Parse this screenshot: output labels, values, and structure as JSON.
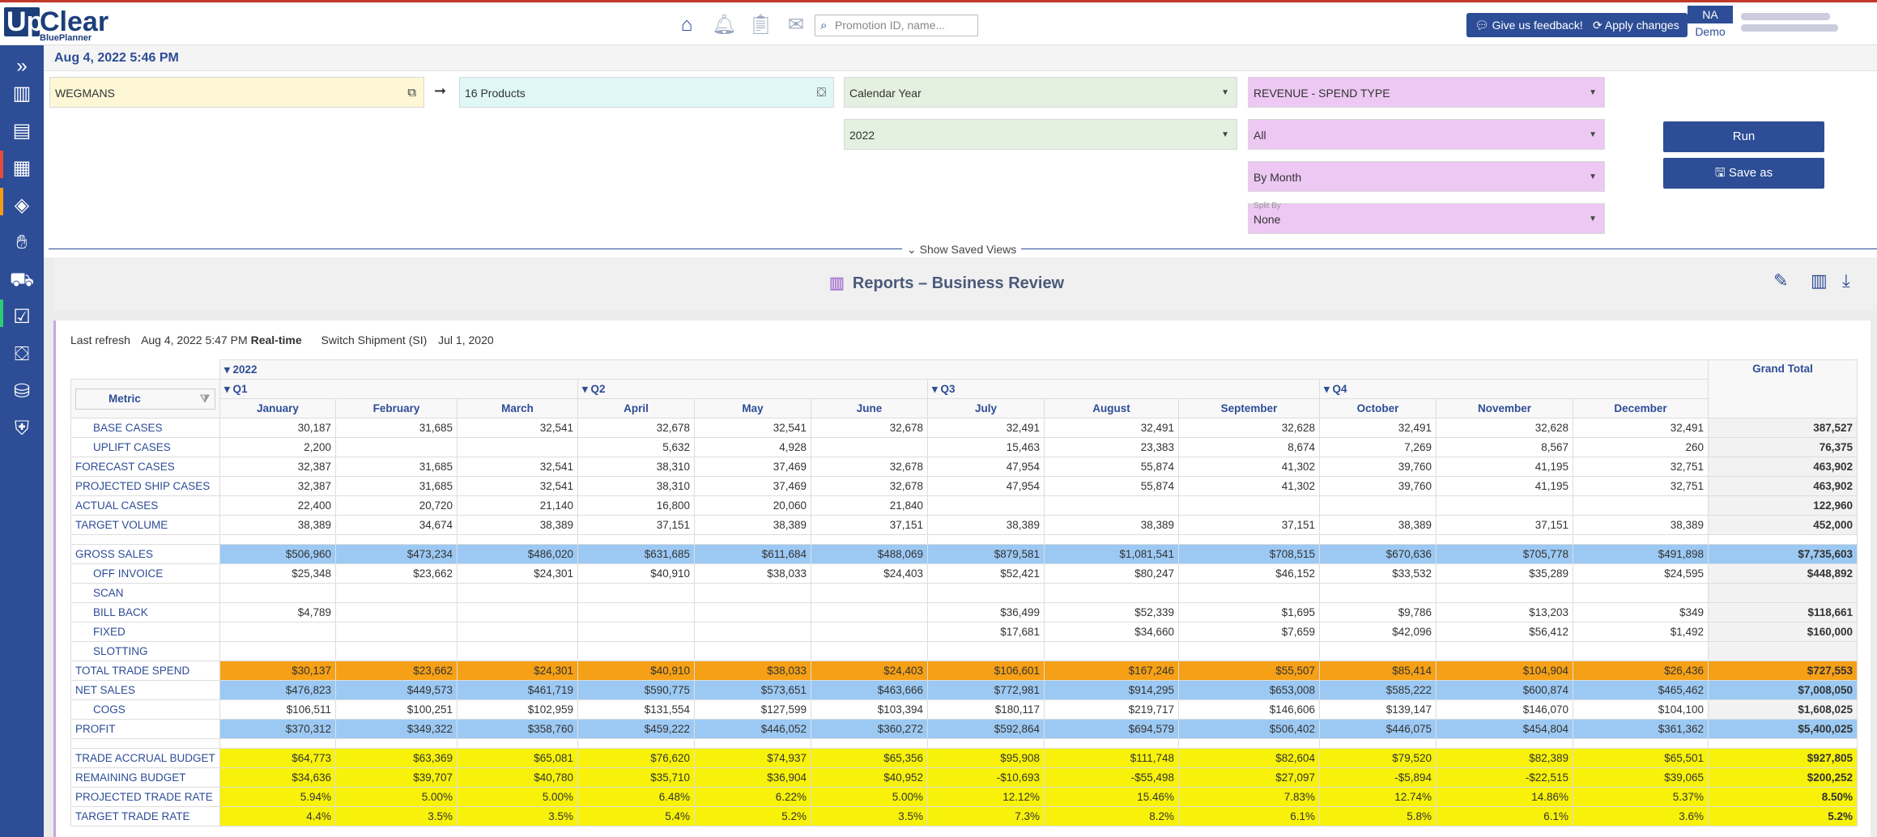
{
  "header": {
    "logo_up": "Up",
    "logo_clear": "Clear",
    "logo_sub": "BluePlanner",
    "search_placeholder": "Promotion ID, name...",
    "feedback_label": "Give us feedback!",
    "apply_label": "Apply changes",
    "user_initials": "NA",
    "user_role": "Demo",
    "icons": [
      "home-icon",
      "bell-icon",
      "clipboard-check-icon",
      "mail-icon",
      "search-icon"
    ]
  },
  "sidebar": {
    "icons": [
      "expand-icon",
      "reports-icon",
      "warehouse-icon",
      "table-icon",
      "tag-icon",
      "handshake-icon",
      "cart-icon",
      "checkbox-icon",
      "toolbox-icon",
      "database-icon",
      "shield-icon"
    ],
    "marker_colors": [
      "#2d4d96",
      "#e74c3c",
      "#f39c12",
      "#2ecc71",
      "#3498db",
      "#9b59b6"
    ]
  },
  "datebar": {
    "text": "Aug 4, 2022 5:46 PM"
  },
  "filters": {
    "customer": "WEGMANS",
    "products": "16 Products",
    "period": "Calendar Year",
    "year": "2022",
    "measure": "REVENUE - SPEND TYPE",
    "scope": "All",
    "granularity": "By Month",
    "split_label": "Split By",
    "split_value": "None"
  },
  "actions": {
    "run": "Run",
    "save_as": "Save as"
  },
  "saved_views": {
    "label": "Show Saved Views"
  },
  "report": {
    "title": "Reports – Business Review",
    "last_refresh_label": "Last refresh",
    "last_refresh_value": "Aug 4, 2022 5:47 PM",
    "realtime": "Real-time",
    "shipment_label": "Switch Shipment (SI)",
    "shipment_date": "Jul 1, 2020"
  },
  "table": {
    "year": "2022",
    "quarters": [
      "Q1",
      "Q2",
      "Q3",
      "Q4"
    ],
    "metric_header": "Metric",
    "grand_total_header": "Grand Total",
    "months": [
      "January",
      "February",
      "March",
      "April",
      "May",
      "June",
      "July",
      "August",
      "September",
      "October",
      "November",
      "December"
    ],
    "rows": [
      {
        "label": "BASE CASES",
        "indent": true,
        "style": "",
        "values": [
          "30,187",
          "31,685",
          "32,541",
          "32,678",
          "32,541",
          "32,678",
          "32,491",
          "32,491",
          "32,628",
          "32,491",
          "32,628",
          "32,491"
        ],
        "total": "387,527"
      },
      {
        "label": "UPLIFT CASES",
        "indent": true,
        "style": "",
        "values": [
          "2,200",
          "",
          "",
          "5,632",
          "4,928",
          "",
          "15,463",
          "23,383",
          "8,674",
          "7,269",
          "8,567",
          "260"
        ],
        "total": "76,375"
      },
      {
        "label": "FORECAST CASES",
        "indent": false,
        "style": "",
        "values": [
          "32,387",
          "31,685",
          "32,541",
          "38,310",
          "37,469",
          "32,678",
          "47,954",
          "55,874",
          "41,302",
          "39,760",
          "41,195",
          "32,751"
        ],
        "total": "463,902"
      },
      {
        "label": "PROJECTED SHIP CASES",
        "indent": false,
        "style": "",
        "values": [
          "32,387",
          "31,685",
          "32,541",
          "38,310",
          "37,469",
          "32,678",
          "47,954",
          "55,874",
          "41,302",
          "39,760",
          "41,195",
          "32,751"
        ],
        "total": "463,902"
      },
      {
        "label": "ACTUAL CASES",
        "indent": false,
        "style": "",
        "values": [
          "22,400",
          "20,720",
          "21,140",
          "16,800",
          "20,060",
          "21,840",
          "",
          "",
          "",
          "",
          "",
          ""
        ],
        "total": "122,960"
      },
      {
        "label": "TARGET VOLUME",
        "indent": false,
        "style": "",
        "values": [
          "38,389",
          "34,674",
          "38,389",
          "37,151",
          "38,389",
          "37,151",
          "38,389",
          "38,389",
          "37,151",
          "38,389",
          "37,151",
          "38,389"
        ],
        "total": "452,000"
      },
      {
        "spacer": true
      },
      {
        "label": "GROSS SALES",
        "indent": false,
        "style": "blue",
        "values": [
          "$506,960",
          "$473,234",
          "$486,020",
          "$631,685",
          "$611,684",
          "$488,069",
          "$879,581",
          "$1,081,541",
          "$708,515",
          "$670,636",
          "$705,778",
          "$491,898"
        ],
        "total": "$7,735,603"
      },
      {
        "label": "OFF INVOICE",
        "indent": true,
        "style": "",
        "values": [
          "$25,348",
          "$23,662",
          "$24,301",
          "$40,910",
          "$38,033",
          "$24,403",
          "$52,421",
          "$80,247",
          "$46,152",
          "$33,532",
          "$35,289",
          "$24,595"
        ],
        "total": "$448,892"
      },
      {
        "label": "SCAN",
        "indent": true,
        "style": "",
        "values": [
          "",
          "",
          "",
          "",
          "",
          "",
          "",
          "",
          "",
          "",
          "",
          ""
        ],
        "total": ""
      },
      {
        "label": "BILL BACK",
        "indent": true,
        "style": "",
        "values": [
          "$4,789",
          "",
          "",
          "",
          "",
          "",
          "$36,499",
          "$52,339",
          "$1,695",
          "$9,786",
          "$13,203",
          "$349"
        ],
        "total": "$118,661"
      },
      {
        "label": "FIXED",
        "indent": true,
        "style": "",
        "values": [
          "",
          "",
          "",
          "",
          "",
          "",
          "$17,681",
          "$34,660",
          "$7,659",
          "$42,096",
          "$56,412",
          "$1,492"
        ],
        "total": "$160,000"
      },
      {
        "label": "SLOTTING",
        "indent": true,
        "style": "",
        "values": [
          "",
          "",
          "",
          "",
          "",
          "",
          "",
          "",
          "",
          "",
          "",
          ""
        ],
        "total": ""
      },
      {
        "label": "TOTAL TRADE SPEND",
        "indent": false,
        "style": "orange",
        "values": [
          "$30,137",
          "$23,662",
          "$24,301",
          "$40,910",
          "$38,033",
          "$24,403",
          "$106,601",
          "$167,246",
          "$55,507",
          "$85,414",
          "$104,904",
          "$26,436"
        ],
        "total": "$727,553"
      },
      {
        "label": "NET SALES",
        "indent": false,
        "style": "blue",
        "values": [
          "$476,823",
          "$449,573",
          "$461,719",
          "$590,775",
          "$573,651",
          "$463,666",
          "$772,981",
          "$914,295",
          "$653,008",
          "$585,222",
          "$600,874",
          "$465,462"
        ],
        "total": "$7,008,050"
      },
      {
        "label": "COGS",
        "indent": true,
        "style": "",
        "values": [
          "$106,511",
          "$100,251",
          "$102,959",
          "$131,554",
          "$127,599",
          "$103,394",
          "$180,117",
          "$219,717",
          "$146,606",
          "$139,147",
          "$146,070",
          "$104,100"
        ],
        "total": "$1,608,025"
      },
      {
        "label": "PROFIT",
        "indent": false,
        "style": "blue",
        "values": [
          "$370,312",
          "$349,322",
          "$358,760",
          "$459,222",
          "$446,052",
          "$360,272",
          "$592,864",
          "$694,579",
          "$506,402",
          "$446,075",
          "$454,804",
          "$361,362"
        ],
        "total": "$5,400,025"
      },
      {
        "spacer": true
      },
      {
        "label": "TRADE ACCRUAL BUDGET",
        "indent": false,
        "style": "yel",
        "values": [
          "$64,773",
          "$63,369",
          "$65,081",
          "$76,620",
          "$74,937",
          "$65,356",
          "$95,908",
          "$111,748",
          "$82,604",
          "$79,520",
          "$82,389",
          "$65,501"
        ],
        "total": "$927,805"
      },
      {
        "label": "REMAINING BUDGET",
        "indent": false,
        "style": "yel",
        "values": [
          "$34,636",
          "$39,707",
          "$40,780",
          "$35,710",
          "$36,904",
          "$40,952",
          "-$10,693",
          "-$55,498",
          "$27,097",
          "-$5,894",
          "-$22,515",
          "$39,065"
        ],
        "total": "$200,252"
      },
      {
        "label": "PROJECTED TRADE RATE",
        "indent": false,
        "style": "yel",
        "values": [
          "5.94%",
          "5.00%",
          "5.00%",
          "6.48%",
          "6.22%",
          "5.00%",
          "12.12%",
          "15.46%",
          "7.83%",
          "12.74%",
          "14.86%",
          "5.37%"
        ],
        "total": "8.50%"
      },
      {
        "label": "TARGET TRADE RATE",
        "indent": false,
        "style": "yel",
        "values": [
          "4.4%",
          "3.5%",
          "3.5%",
          "5.4%",
          "5.2%",
          "3.5%",
          "7.3%",
          "8.2%",
          "6.1%",
          "5.8%",
          "6.1%",
          "3.6%"
        ],
        "total": "5.2%"
      }
    ]
  }
}
